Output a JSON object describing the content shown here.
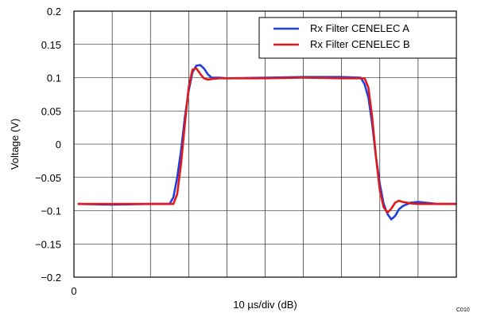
{
  "chart_data": {
    "type": "line",
    "xlabel": "10 µs/div (dB)",
    "ylabel": "Voltage (V)",
    "xlim": [
      0,
      10
    ],
    "ylim": [
      -0.2,
      0.2
    ],
    "x_tick_labels": [
      {
        "x": 0,
        "label": "0"
      }
    ],
    "y_ticks": [
      -0.2,
      -0.15,
      -0.1,
      -0.05,
      0,
      0.05,
      0.1,
      0.15,
      0.2
    ],
    "y_tick_labels": [
      "−0.2",
      "−0.15",
      "−0.1",
      "−0.05",
      "0",
      "0.05",
      "0.1",
      "0.15",
      "0.2"
    ],
    "x_grid": [
      0,
      1,
      2,
      3,
      4,
      5,
      6,
      7,
      8,
      9,
      10
    ],
    "grid": true,
    "legend_position": "top-right",
    "corner_code": "C010",
    "series": [
      {
        "name": "Rx Filter CENELEC A",
        "color": "#1f3fe0",
        "x": [
          0.1,
          1.0,
          2.0,
          2.5,
          2.6,
          2.7,
          2.8,
          2.9,
          3.0,
          3.1,
          3.2,
          3.3,
          3.4,
          3.5,
          3.6,
          3.8,
          4.0,
          5.0,
          6.0,
          7.0,
          7.5,
          7.6,
          7.7,
          7.8,
          7.9,
          8.0,
          8.1,
          8.2,
          8.3,
          8.4,
          8.5,
          8.6,
          8.8,
          9.0,
          9.5,
          10.0
        ],
        "y": [
          -0.09,
          -0.091,
          -0.09,
          -0.09,
          -0.08,
          -0.05,
          -0.01,
          0.04,
          0.08,
          0.108,
          0.118,
          0.119,
          0.114,
          0.105,
          0.1,
          0.1,
          0.099,
          0.1,
          0.101,
          0.101,
          0.1,
          0.09,
          0.07,
          0.03,
          -0.02,
          -0.06,
          -0.09,
          -0.105,
          -0.113,
          -0.108,
          -0.098,
          -0.093,
          -0.088,
          -0.087,
          -0.09,
          -0.09
        ]
      },
      {
        "name": "Rx Filter CENELEC B",
        "color": "#e0191c",
        "x": [
          0.1,
          1.0,
          2.0,
          2.6,
          2.7,
          2.8,
          2.9,
          3.0,
          3.1,
          3.2,
          3.3,
          3.4,
          3.5,
          3.6,
          3.8,
          4.0,
          5.0,
          6.0,
          7.0,
          7.6,
          7.7,
          7.8,
          7.9,
          8.0,
          8.1,
          8.2,
          8.3,
          8.4,
          8.5,
          8.6,
          8.8,
          9.0,
          9.5,
          10.0
        ],
        "y": [
          -0.09,
          -0.09,
          -0.09,
          -0.09,
          -0.075,
          -0.03,
          0.03,
          0.085,
          0.112,
          0.114,
          0.106,
          0.099,
          0.097,
          0.098,
          0.099,
          0.099,
          0.099,
          0.1,
          0.099,
          0.099,
          0.085,
          0.04,
          -0.02,
          -0.07,
          -0.095,
          -0.103,
          -0.097,
          -0.088,
          -0.085,
          -0.087,
          -0.089,
          -0.09,
          -0.09,
          -0.09
        ]
      }
    ]
  }
}
